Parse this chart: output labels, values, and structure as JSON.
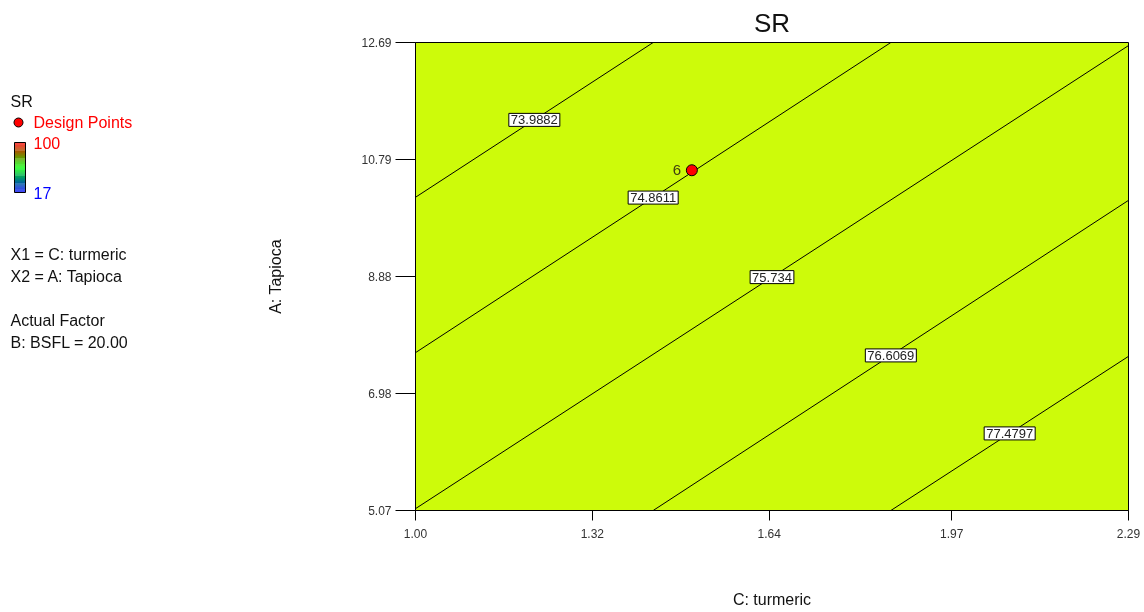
{
  "chart_data": {
    "type": "line",
    "title": "SR",
    "xlabel": "C: turmeric",
    "ylabel": "A: Tapioca",
    "legend_title": "SR",
    "xlim": [
      1.0,
      2.29
    ],
    "ylim": [
      5.07,
      12.69
    ],
    "xticks": [
      {
        "value": 1.0,
        "label": "1.00"
      },
      1.32,
      1.64,
      1.97,
      2.29
    ],
    "yticks": [
      5.07,
      6.98,
      8.88,
      10.79,
      12.69
    ],
    "clim": [
      17,
      100
    ],
    "cticks": [
      17,
      100
    ],
    "grid": false,
    "legend": "left",
    "line_style": "solid",
    "series": [
      {
        "name": "73.9882",
        "color": "#000000",
        "x": [
          1.0,
          1.43
        ],
        "values": [
          10.17,
          12.69
        ]
      },
      {
        "name": "74.8611",
        "color": "#000000",
        "x": [
          1.0,
          1.86
        ],
        "values": [
          7.64,
          12.69
        ]
      },
      {
        "name": "75.734",
        "color": "#000000",
        "x": [
          1.0,
          2.29
        ],
        "values": [
          5.1,
          12.64
        ]
      },
      {
        "name": "76.6069",
        "color": "#000000",
        "x": [
          1.43,
          2.29
        ],
        "values": [
          5.07,
          10.12
        ]
      },
      {
        "name": "77.4797",
        "color": "#000000",
        "x": [
          1.86,
          2.29
        ],
        "values": [
          5.07,
          7.58
        ]
      },
      {
        "type": "scatter",
        "name": "Design Points",
        "color": "#ff0000",
        "marker": "circle",
        "x": [
          1.5
        ],
        "values": [
          10.61
        ]
      }
    ],
    "annotations": [
      "X1 = C: turmeric",
      "X2 = A: Tapioca",
      "Actual Factor",
      "B: BSFL = 20.00",
      {
        "text": "6",
        "x": 1.5,
        "y": 10.61
      }
    ]
  }
}
